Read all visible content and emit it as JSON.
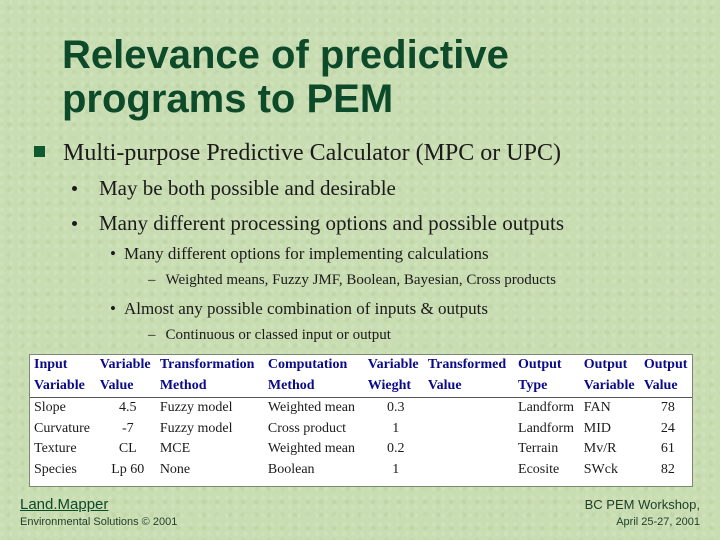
{
  "slide": {
    "title_line1": "Relevance of predictive",
    "title_line2": "programs to PEM",
    "bullet1": "Multi-purpose Predictive Calculator (MPC or UPC)",
    "sub1": "May be both possible and desirable",
    "sub2": "Many different processing options and possible outputs",
    "sub2_1": "Many different options for implementing calculations",
    "sub2_1_1": "Weighted means, Fuzzy JMF, Boolean, Bayesian, Cross products",
    "sub2_2": "Almost any possible combination of inputs & outputs",
    "sub2_2_1": "Continuous or classed input or output",
    "bullet_marker": "n",
    "colors": {
      "title": "#0d4a2a",
      "table_header": "#0a0a8a",
      "background": "#c9ddb2"
    }
  },
  "table": {
    "header_row1": [
      "Input",
      "Variable",
      "Transformation",
      "Computation",
      "Variable",
      "Transformed",
      "Output",
      "Output",
      "Output"
    ],
    "header_row2": [
      "Variable",
      "Value",
      "Method",
      "Method",
      "Wieght",
      "Value",
      "Type",
      "Variable",
      "Value"
    ],
    "rows": [
      [
        "Slope",
        "4.5",
        "Fuzzy model",
        "Weighted mean",
        "0.3",
        "",
        "Landform",
        "FAN",
        "78"
      ],
      [
        "Curvature",
        "-7",
        "Fuzzy model",
        "Cross product",
        "1",
        "",
        "Landform",
        "MID",
        "24"
      ],
      [
        "Texture",
        "CL",
        "MCE",
        "Weighted mean",
        "0.2",
        "",
        "Terrain",
        "Mv/R",
        "61"
      ],
      [
        "Species",
        "Lp 60",
        "None",
        "Boolean",
        "1",
        "",
        "Ecosite",
        "SWck",
        "82"
      ]
    ]
  },
  "footer": {
    "left_title": "Land.Mapper",
    "left_sub": "Environmental Solutions © 2001",
    "right_title": "BC PEM Workshop,",
    "right_sub": "April 25-27, 2001"
  }
}
